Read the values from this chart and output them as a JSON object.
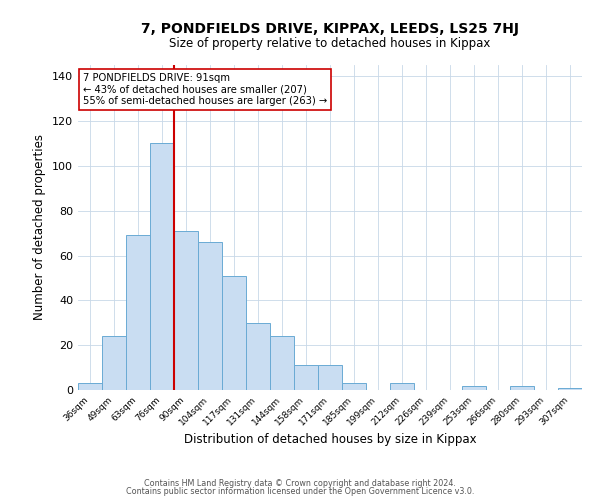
{
  "title": "7, PONDFIELDS DRIVE, KIPPAX, LEEDS, LS25 7HJ",
  "subtitle": "Size of property relative to detached houses in Kippax",
  "xlabel": "Distribution of detached houses by size in Kippax",
  "ylabel": "Number of detached properties",
  "bin_labels": [
    "36sqm",
    "49sqm",
    "63sqm",
    "76sqm",
    "90sqm",
    "104sqm",
    "117sqm",
    "131sqm",
    "144sqm",
    "158sqm",
    "171sqm",
    "185sqm",
    "199sqm",
    "212sqm",
    "226sqm",
    "239sqm",
    "253sqm",
    "266sqm",
    "280sqm",
    "293sqm",
    "307sqm"
  ],
  "bar_heights": [
    3,
    24,
    69,
    110,
    71,
    66,
    51,
    30,
    24,
    11,
    11,
    3,
    0,
    3,
    0,
    0,
    2,
    0,
    2,
    0,
    1
  ],
  "bar_color": "#c9ddf2",
  "bar_edge_color": "#6aaad4",
  "vline_x_idx": 4,
  "vline_color": "#cc0000",
  "annotation_text": "7 PONDFIELDS DRIVE: 91sqm\n← 43% of detached houses are smaller (207)\n55% of semi-detached houses are larger (263) →",
  "annotation_box_color": "#ffffff",
  "annotation_box_edge": "#cc0000",
  "ylim": [
    0,
    145
  ],
  "footer1": "Contains HM Land Registry data © Crown copyright and database right 2024.",
  "footer2": "Contains public sector information licensed under the Open Government Licence v3.0.",
  "background_color": "#ffffff",
  "grid_color": "#c8d8e8"
}
